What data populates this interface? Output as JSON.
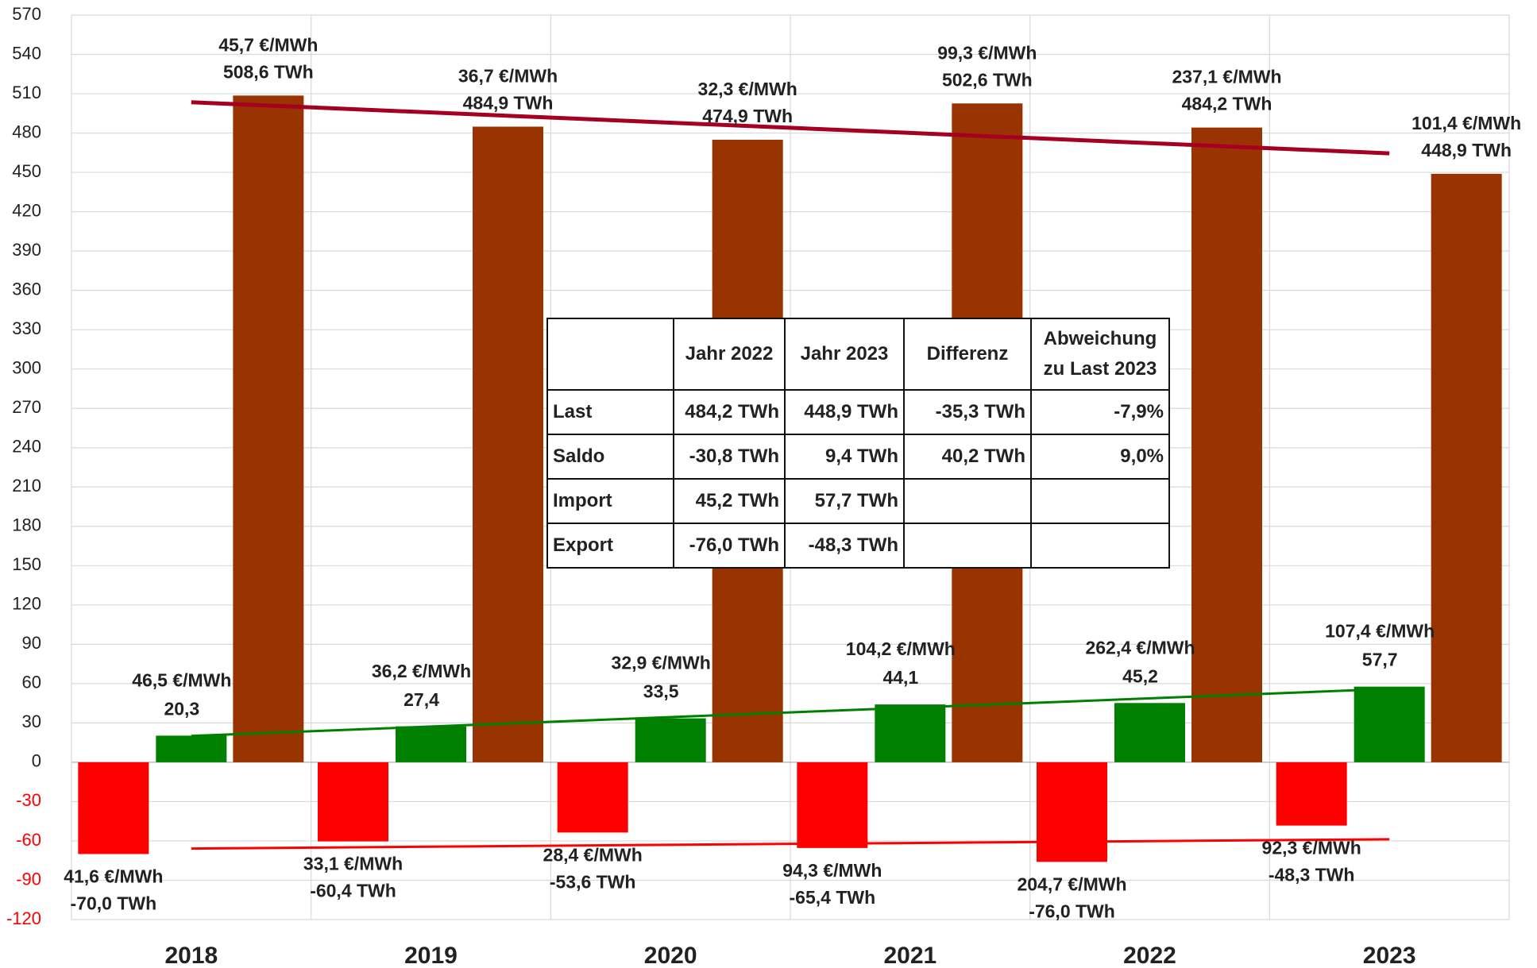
{
  "chart_data": {
    "type": "bar",
    "categories": [
      "2018",
      "2019",
      "2020",
      "2021",
      "2022",
      "2023"
    ],
    "series": [
      {
        "name": "Export",
        "color": "#ff0000",
        "trend_color": "#ff0000",
        "values": [
          -70.0,
          -60.4,
          -53.6,
          -65.4,
          -76.0,
          -48.3
        ],
        "value_labels": [
          "-70,0 TWh",
          "-60,4 TWh",
          "-53,6 TWh",
          "-65,4 TWh",
          "-76,0 TWh",
          "-48,3 TWh"
        ],
        "price_labels": [
          "41,6 €/MWh",
          "33,1 €/MWh",
          "28,4 €/MWh",
          "94,3 €/MWh",
          "204,7 €/MWh",
          "92,3 €/MWh"
        ]
      },
      {
        "name": "Import",
        "color": "#008000",
        "trend_color": "#008000",
        "values": [
          20.3,
          27.4,
          33.5,
          44.1,
          45.2,
          57.7
        ],
        "value_labels": [
          "20,3",
          "27,4",
          "33,5",
          "44,1",
          "45,2",
          "57,7"
        ],
        "price_labels": [
          "46,5 €/MWh",
          "36,2 €/MWh",
          "32,9 €/MWh",
          "104,2 €/MWh",
          "262,4 €/MWh",
          "107,4 €/MWh"
        ]
      },
      {
        "name": "Last",
        "color": "#993300",
        "trend_color": "#a50021",
        "values": [
          508.6,
          484.9,
          474.9,
          502.6,
          484.2,
          448.9
        ],
        "value_labels": [
          "508,6 TWh",
          "484,9 TWh",
          "474,9 TWh",
          "502,6 TWh",
          "484,2 TWh",
          "448,9 TWh"
        ],
        "price_labels": [
          "45,7 €/MWh",
          "36,7 €/MWh",
          "32,3 €/MWh",
          "99,3 €/MWh",
          "237,1 €/MWh",
          "101,4 €/MWh"
        ]
      }
    ],
    "ylim": [
      -120,
      570
    ],
    "yticks": [
      -120,
      -90,
      -60,
      -30,
      0,
      30,
      60,
      90,
      120,
      150,
      180,
      210,
      240,
      270,
      300,
      330,
      360,
      390,
      420,
      450,
      480,
      510,
      540,
      570
    ],
    "grid": true,
    "trendline": true
  },
  "table": {
    "header": [
      "Jahr 2022",
      "Jahr 2023",
      "Differenz",
      "Abweichung zu Last 2023"
    ],
    "rows": [
      [
        "Last",
        "484,2 TWh",
        "448,9 TWh",
        "-35,3 TWh",
        "-7,9%"
      ],
      [
        "Saldo",
        "-30,8 TWh",
        "9,4 TWh",
        "40,2 TWh",
        "9,0%"
      ],
      [
        "Import",
        "45,2 TWh",
        "57,7 TWh"
      ],
      [
        "Export",
        "-76,0 TWh",
        "-48,3 TWh"
      ]
    ]
  }
}
